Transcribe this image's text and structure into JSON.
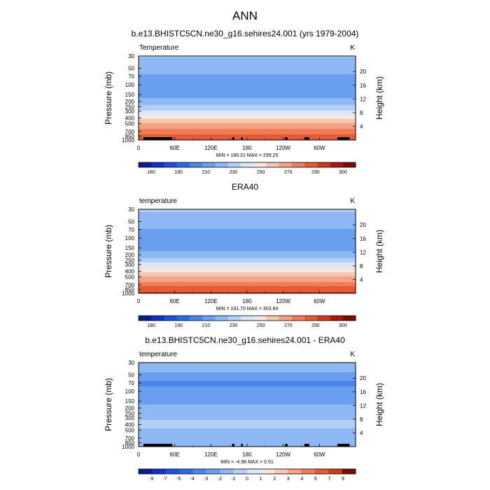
{
  "figure": {
    "title": "ANN"
  },
  "axes": {
    "xtick_labels": [
      "0",
      "60E",
      "120E",
      "180",
      "120W",
      "60W"
    ],
    "ytick_labels": [
      "30",
      "50",
      "70",
      "100",
      "150",
      "200",
      "250",
      "300",
      "400",
      "500",
      "700",
      "850",
      "1000"
    ],
    "ylabel": "Pressure (mb)",
    "ylabel_right": "Height (km)",
    "height_ticks": [
      "20",
      "16",
      "12",
      "8",
      "4"
    ]
  },
  "chart_data": [
    {
      "type": "heatmap",
      "title": "b.e13.BHISTC5CN.ne30_g16.sehires24.001 (yrs 1979-2004)",
      "field_label": "Temperature",
      "units": "K",
      "stats": "MIN = 189.31  MAX = 299.25",
      "xlim": [
        0,
        360
      ],
      "ylim": [
        1000,
        30
      ],
      "yscale": "log",
      "colorbar_labels": [
        "180",
        "190",
        "210",
        "230",
        "250",
        "270",
        "290",
        "300"
      ],
      "levels": [
        175,
        180,
        185,
        190,
        200,
        210,
        220,
        230,
        240,
        250,
        260,
        270,
        280,
        290,
        295,
        300
      ],
      "colors": [
        "#0a1a8f",
        "#1030c8",
        "#1e4fe0",
        "#2e6ae8",
        "#4a86ec",
        "#6a9ff0",
        "#8db8f3",
        "#b4d0f6",
        "#dbe7f7",
        "#f6e6df",
        "#f7c6b0",
        "#f4a382",
        "#ef7e58",
        "#e45a34",
        "#cf3a1c",
        "#a81a0c",
        "#7a0e06"
      ],
      "profile": [
        {
          "p": 30,
          "v": 221
        },
        {
          "p": 40,
          "v": 217
        },
        {
          "p": 50,
          "v": 214
        },
        {
          "p": 70,
          "v": 208
        },
        {
          "p": 100,
          "v": 203
        },
        {
          "p": 150,
          "v": 206
        },
        {
          "p": 200,
          "v": 213
        },
        {
          "p": 250,
          "v": 222
        },
        {
          "p": 300,
          "v": 232
        },
        {
          "p": 400,
          "v": 248
        },
        {
          "p": 500,
          "v": 259
        },
        {
          "p": 700,
          "v": 276
        },
        {
          "p": 850,
          "v": 283
        },
        {
          "p": 1000,
          "v": 290
        }
      ]
    },
    {
      "type": "heatmap",
      "title": "ERA40",
      "field_label": "temperature",
      "units": "K",
      "stats": "MIN = 191.70  MAX = 303.84",
      "xlim": [
        0,
        360
      ],
      "ylim": [
        1000,
        30
      ],
      "yscale": "log",
      "colorbar_labels": [
        "180",
        "190",
        "210",
        "230",
        "250",
        "270",
        "290",
        "300"
      ],
      "levels": [
        175,
        180,
        185,
        190,
        200,
        210,
        220,
        230,
        240,
        250,
        260,
        270,
        280,
        290,
        295,
        300
      ],
      "colors": [
        "#0a1a8f",
        "#1030c8",
        "#1e4fe0",
        "#2e6ae8",
        "#4a86ec",
        "#6a9ff0",
        "#8db8f3",
        "#b4d0f6",
        "#dbe7f7",
        "#f6e6df",
        "#f7c6b0",
        "#f4a382",
        "#ef7e58",
        "#e45a34",
        "#cf3a1c",
        "#a81a0c",
        "#7a0e06"
      ],
      "profile": [
        {
          "p": 30,
          "v": 222
        },
        {
          "p": 40,
          "v": 218
        },
        {
          "p": 50,
          "v": 215
        },
        {
          "p": 70,
          "v": 209
        },
        {
          "p": 100,
          "v": 205
        },
        {
          "p": 150,
          "v": 207
        },
        {
          "p": 200,
          "v": 214
        },
        {
          "p": 250,
          "v": 223
        },
        {
          "p": 300,
          "v": 233
        },
        {
          "p": 400,
          "v": 249
        },
        {
          "p": 500,
          "v": 260
        },
        {
          "p": 700,
          "v": 277
        },
        {
          "p": 850,
          "v": 284
        },
        {
          "p": 1000,
          "v": 292
        }
      ]
    },
    {
      "type": "heatmap",
      "title": "b.e13.BHISTC5CN.ne30_g16.sehires24.001 - ERA40",
      "field_label": "temperature",
      "units": "K",
      "stats": "MIN =  -4.98  MAX =   0.51",
      "xlim": [
        0,
        360
      ],
      "ylim": [
        1000,
        30
      ],
      "yscale": "log",
      "colorbar_labels": [
        "-9",
        "-7",
        "-5",
        "-4",
        "-3",
        "-2",
        "-1",
        "0",
        "1",
        "2",
        "3",
        "4",
        "5",
        "7",
        "9"
      ],
      "levels": [
        -9,
        -7,
        -5,
        -4,
        -3,
        -2,
        -1,
        0,
        1,
        2,
        3,
        4,
        5,
        7,
        9
      ],
      "colors": [
        "#0a1a8f",
        "#1030c8",
        "#1e4fe0",
        "#2e6ae8",
        "#4a86ec",
        "#6a9ff0",
        "#8db8f3",
        "#b4d0f6",
        "#dbe7f7",
        "#f6e6df",
        "#f7c6b0",
        "#f4a382",
        "#ef7e58",
        "#e45a34",
        "#cf3a1c",
        "#7a0e06"
      ],
      "profile": [
        {
          "p": 30,
          "v": -1.4
        },
        {
          "p": 40,
          "v": -1.8
        },
        {
          "p": 50,
          "v": -2.2
        },
        {
          "p": 70,
          "v": -3.3
        },
        {
          "p": 100,
          "v": -2.6
        },
        {
          "p": 150,
          "v": -2.3
        },
        {
          "p": 200,
          "v": -1.6
        },
        {
          "p": 250,
          "v": -1.2
        },
        {
          "p": 300,
          "v": -1.1
        },
        {
          "p": 400,
          "v": -0.8
        },
        {
          "p": 500,
          "v": -1.1
        },
        {
          "p": 700,
          "v": -1.3
        },
        {
          "p": 850,
          "v": -1.6
        },
        {
          "p": 1000,
          "v": -1.8
        }
      ]
    }
  ]
}
